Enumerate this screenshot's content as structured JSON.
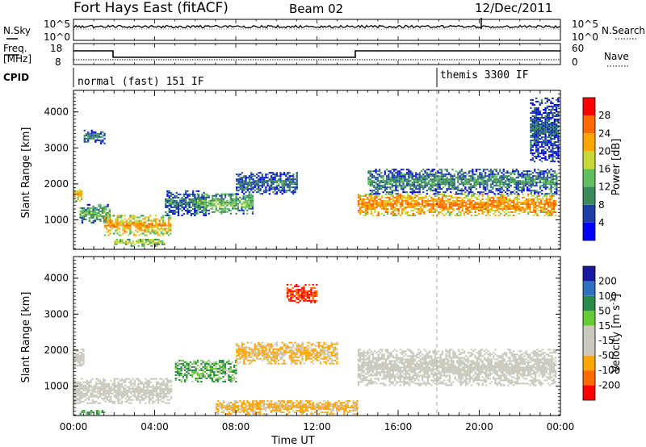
{
  "header": {
    "station": "Fort Hays East (fitACF)",
    "beam": "Beam 02",
    "date": "12/Dec/2011"
  },
  "top_panels": {
    "nsky_label": "N.Sky",
    "nsky_ticks": [
      "10^5",
      "10^0"
    ],
    "nsearch_label": "N.Search",
    "nsearch_ticks": [
      "10^5",
      "10^0"
    ],
    "freq_label_1": "Freq.",
    "freq_label_2": "[MHz]",
    "freq_ticks": [
      "18",
      "8"
    ],
    "nave_label": "Nave",
    "nave_ticks": [
      "60",
      "0"
    ],
    "cpid_label": "CPID",
    "cpid_modes": [
      {
        "name": "normal (fast) 151 IF",
        "start_hour": 0
      },
      {
        "name": "themis 3300 IF",
        "start_hour": 18
      }
    ]
  },
  "chart_data": [
    {
      "type": "heatmap",
      "title": "",
      "xlabel": "Time UT",
      "ylabel": "Slant Range [km]",
      "x_range_hours": [
        0,
        24
      ],
      "ylim": [
        180,
        4600
      ],
      "x_ticks": [
        "00:00",
        "04:00",
        "08:00",
        "12:00",
        "16:00",
        "20:00",
        "00:00"
      ],
      "y_ticks": [
        1000,
        2000,
        3000,
        4000
      ],
      "colorbar": {
        "label": "Power [dB]",
        "tick_labels": [
          "4",
          "8",
          "12",
          "16",
          "20",
          "24",
          "28"
        ],
        "colors": [
          "#0000ff",
          "#1f3fa8",
          "#3a8a5a",
          "#5fbf5f",
          "#c8d83a",
          "#ffa500",
          "#ff6a00",
          "#ff0000"
        ]
      },
      "regions": [
        {
          "t0": 0.0,
          "t1": 0.4,
          "r0": 1500,
          "r1": 1900,
          "value": 22
        },
        {
          "t0": 0.5,
          "t1": 1.5,
          "r0": 3100,
          "r1": 3500,
          "value": 10
        },
        {
          "t0": 0.3,
          "t1": 1.8,
          "r0": 900,
          "r1": 1400,
          "value": 14
        },
        {
          "t0": 1.5,
          "t1": 4.8,
          "r0": 550,
          "r1": 1100,
          "value": 23
        },
        {
          "t0": 2.0,
          "t1": 4.5,
          "r0": 250,
          "r1": 450,
          "value": 18
        },
        {
          "t0": 4.5,
          "t1": 6.5,
          "r0": 1100,
          "r1": 1800,
          "value": 10
        },
        {
          "t0": 6.0,
          "t1": 8.8,
          "r0": 1150,
          "r1": 1700,
          "value": 14
        },
        {
          "t0": 8.0,
          "t1": 11.0,
          "r0": 1700,
          "r1": 2300,
          "value": 9
        },
        {
          "t0": 14.0,
          "t1": 23.8,
          "r0": 1100,
          "r1": 1700,
          "value": 25
        },
        {
          "t0": 14.5,
          "t1": 23.8,
          "r0": 1700,
          "r1": 2400,
          "value": 11
        },
        {
          "t0": 22.5,
          "t1": 23.9,
          "r0": 2600,
          "r1": 4400,
          "value": 8
        }
      ]
    },
    {
      "type": "heatmap",
      "title": "",
      "xlabel": "Time UT",
      "ylabel": "Slant Range [km]",
      "x_range_hours": [
        0,
        24
      ],
      "ylim": [
        180,
        4600
      ],
      "x_ticks": [
        "00:00",
        "04:00",
        "08:00",
        "12:00",
        "16:00",
        "20:00",
        "00:00"
      ],
      "y_ticks": [
        1000,
        2000,
        3000,
        4000
      ],
      "colorbar": {
        "label_prefix": "Velocity [m s",
        "label_sup": "-1",
        "label_suffix": "]",
        "tick_labels": [
          "200",
          "100",
          "50",
          "15",
          "-15",
          "-50",
          "-100",
          "-200"
        ],
        "colors": [
          "#1a1aa0",
          "#3070c0",
          "#2a8a4a",
          "#66cc33",
          "#c8c8bc",
          "#c8c8bc",
          "#ffa500",
          "#ff6a00",
          "#ff0000"
        ]
      },
      "regions": [
        {
          "t0": 0.0,
          "t1": 4.8,
          "r0": 500,
          "r1": 1200,
          "value": 0
        },
        {
          "t0": 0.0,
          "t1": 0.5,
          "r0": 1500,
          "r1": 2000,
          "value": 0
        },
        {
          "t0": 0.3,
          "t1": 1.5,
          "r0": 200,
          "r1": 300,
          "value": 30
        },
        {
          "t0": 5.0,
          "t1": 8.0,
          "r0": 1100,
          "r1": 1700,
          "value": 30
        },
        {
          "t0": 8.0,
          "t1": 13.0,
          "r0": 1600,
          "r1": 2200,
          "value": -60
        },
        {
          "t0": 10.5,
          "t1": 12.0,
          "r0": 3300,
          "r1": 3800,
          "value": -200
        },
        {
          "t0": 7.0,
          "t1": 14.0,
          "r0": 200,
          "r1": 600,
          "value": -60
        },
        {
          "t0": 14.0,
          "t1": 23.8,
          "r0": 1000,
          "r1": 2000,
          "value": 0
        }
      ]
    }
  ]
}
